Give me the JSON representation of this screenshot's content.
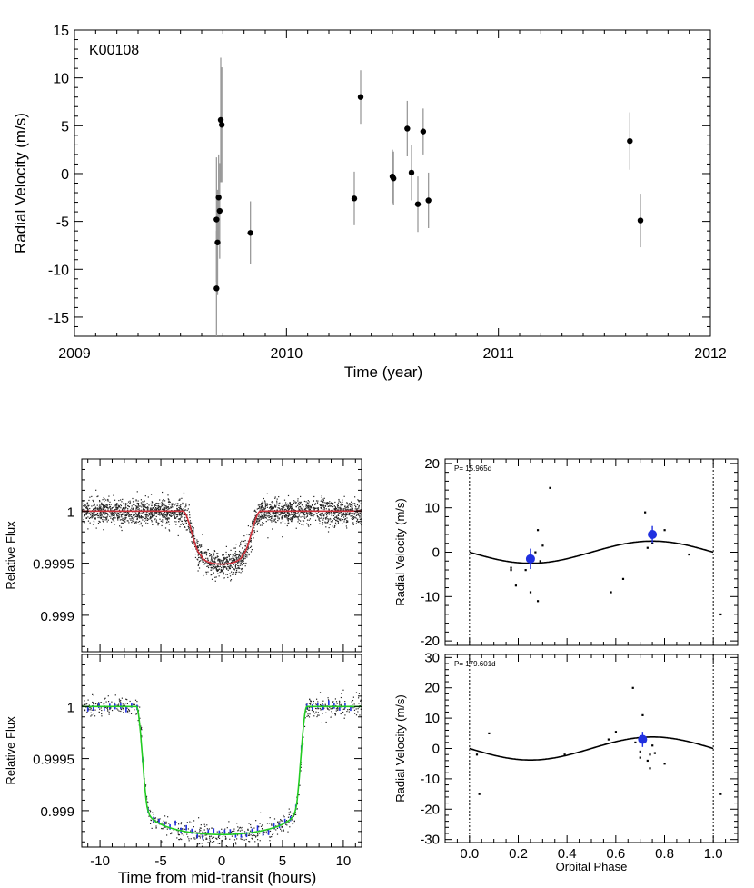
{
  "chart_data": [
    {
      "id": "rv-timeseries",
      "type": "scatter",
      "title": "",
      "annotation": "K00108",
      "xlabel": "Time (year)",
      "ylabel": "Radial Velocity (m/s)",
      "xlim": [
        2009.0,
        2012.0
      ],
      "ylim": [
        -17,
        15
      ],
      "xticks": [
        2009,
        2010,
        2011,
        2012
      ],
      "yticks": [
        -15,
        -10,
        -5,
        0,
        5,
        10,
        15
      ],
      "points": [
        {
          "x": 2009.67,
          "y": -12.0,
          "err": 6.0
        },
        {
          "x": 2009.67,
          "y": -4.8,
          "err": 6.5
        },
        {
          "x": 2009.675,
          "y": -7.2,
          "err": 5.5
        },
        {
          "x": 2009.68,
          "y": -2.5,
          "err": 4.5
        },
        {
          "x": 2009.685,
          "y": -3.9,
          "err": 5.0
        },
        {
          "x": 2009.69,
          "y": 5.6,
          "err": 6.5
        },
        {
          "x": 2009.695,
          "y": 5.1,
          "err": 6.0
        },
        {
          "x": 2009.83,
          "y": -6.2,
          "err": 3.3
        },
        {
          "x": 2010.32,
          "y": -2.6,
          "err": 2.8
        },
        {
          "x": 2010.35,
          "y": 8.0,
          "err": 2.8
        },
        {
          "x": 2010.5,
          "y": -0.3,
          "err": 2.8
        },
        {
          "x": 2010.505,
          "y": -0.5,
          "err": 2.8
        },
        {
          "x": 2010.57,
          "y": 4.7,
          "err": 2.9
        },
        {
          "x": 2010.59,
          "y": 0.1,
          "err": 2.9
        },
        {
          "x": 2010.62,
          "y": -3.2,
          "err": 2.9
        },
        {
          "x": 2010.645,
          "y": 4.4,
          "err": 2.4
        },
        {
          "x": 2010.67,
          "y": -2.8,
          "err": 2.9
        },
        {
          "x": 2011.62,
          "y": 3.4,
          "err": 3.0
        },
        {
          "x": 2011.67,
          "y": -4.9,
          "err": 2.8
        }
      ]
    },
    {
      "id": "transit-fold",
      "type": "scatter",
      "xlabel": "",
      "ylabel": "Relative Flux",
      "xlim": [
        -11.5,
        11.5
      ],
      "ylim": [
        0.99865,
        1.0005
      ],
      "yticks": [
        0.999,
        0.9995,
        1.0
      ],
      "ytick_labels": [
        "0.999",
        "0.9995",
        "1"
      ],
      "model": {
        "ingress_start": -3.2,
        "ingress_end": -1.7,
        "egress_start": 1.7,
        "egress_end": 3.2,
        "depth": 0.00051,
        "color": "#d0303a"
      }
    },
    {
      "id": "transit-fold-zoom",
      "type": "scatter",
      "xlabel": "Time from mid-transit (hours)",
      "ylabel": "Relative Flux",
      "xlim": [
        -11.5,
        11.5
      ],
      "ylim": [
        0.99865,
        1.0005
      ],
      "xticks": [
        -10,
        -5,
        0,
        5,
        10
      ],
      "yticks": [
        0.999,
        0.9995,
        1.0
      ],
      "ytick_labels": [
        "0.999",
        "0.9995",
        "1"
      ],
      "model": {
        "ingress_start": -7.0,
        "ingress_end": -6.0,
        "egress_start": 6.0,
        "egress_end": 7.0,
        "depth": 0.00123,
        "color": "#22cc22"
      },
      "binned_color": "#2030e0"
    },
    {
      "id": "rv-phase-p1",
      "type": "scatter",
      "period_label": "P= 15.965d",
      "xlabel": "",
      "ylabel": "Radial Velocity (m/s)",
      "xlim": [
        -0.1,
        1.1
      ],
      "ylim": [
        -21,
        21
      ],
      "yticks": [
        -20,
        -10,
        0,
        10,
        20
      ],
      "model": {
        "amplitude": 2.5,
        "offset": 0.0,
        "phase": 0.0
      },
      "binned": [
        {
          "x": 0.25,
          "y": -1.5,
          "err": 2.3
        },
        {
          "x": 0.75,
          "y": 4.0,
          "err": 1.9
        }
      ],
      "points": [
        {
          "x": 0.17,
          "y": -3.5
        },
        {
          "x": 0.17,
          "y": -4.0
        },
        {
          "x": 0.19,
          "y": -7.5
        },
        {
          "x": 0.23,
          "y": -4.0
        },
        {
          "x": 0.25,
          "y": -9.0
        },
        {
          "x": 0.27,
          "y": 0.0
        },
        {
          "x": 0.28,
          "y": 5.0
        },
        {
          "x": 0.29,
          "y": -2.0
        },
        {
          "x": 0.28,
          "y": -11.0
        },
        {
          "x": 0.3,
          "y": 1.5
        },
        {
          "x": 0.33,
          "y": 14.5
        },
        {
          "x": 0.58,
          "y": -9.0
        },
        {
          "x": 0.63,
          "y": -6.0
        },
        {
          "x": 0.72,
          "y": 9.0
        },
        {
          "x": 0.73,
          "y": 1.0
        },
        {
          "x": 0.75,
          "y": 2.0
        },
        {
          "x": 0.8,
          "y": 5.0
        },
        {
          "x": 0.9,
          "y": -0.5
        },
        {
          "x": 1.03,
          "y": -14.0
        }
      ]
    },
    {
      "id": "rv-phase-p2",
      "type": "scatter",
      "period_label": "P= 179.601d",
      "xlabel": "Orbital Phase",
      "ylabel": "Radial Velocity (m/s)",
      "xlim": [
        -0.1,
        1.1
      ],
      "ylim": [
        -31,
        31
      ],
      "xticks": [
        0.0,
        0.2,
        0.4,
        0.6,
        0.8,
        1.0
      ],
      "xtick_labels": [
        "0.0",
        "0.2",
        "0.4",
        "0.6",
        "0.8",
        "1.0"
      ],
      "yticks": [
        -30,
        -20,
        -10,
        0,
        10,
        20,
        30
      ],
      "model": {
        "amplitude": 3.8,
        "offset": 0.0,
        "phase": 0.0
      },
      "binned": [
        {
          "x": 0.71,
          "y": 3.0,
          "err": 2.5
        }
      ],
      "points": [
        {
          "x": 0.03,
          "y": -2.0
        },
        {
          "x": 0.04,
          "y": -15.0
        },
        {
          "x": 0.08,
          "y": 5.0
        },
        {
          "x": 0.39,
          "y": -2.0
        },
        {
          "x": 0.57,
          "y": 3.0
        },
        {
          "x": 0.6,
          "y": 5.5
        },
        {
          "x": 0.67,
          "y": 20.0
        },
        {
          "x": 0.68,
          "y": 2.0
        },
        {
          "x": 0.7,
          "y": -1.0
        },
        {
          "x": 0.7,
          "y": -3.0
        },
        {
          "x": 0.71,
          "y": 11.0
        },
        {
          "x": 0.72,
          "y": 2.0
        },
        {
          "x": 0.73,
          "y": -4.0
        },
        {
          "x": 0.74,
          "y": -2.0
        },
        {
          "x": 0.74,
          "y": -6.5
        },
        {
          "x": 0.75,
          "y": 1.0
        },
        {
          "x": 0.76,
          "y": -1.5
        },
        {
          "x": 0.8,
          "y": -5.0
        },
        {
          "x": 1.03,
          "y": -15.0
        }
      ]
    }
  ]
}
